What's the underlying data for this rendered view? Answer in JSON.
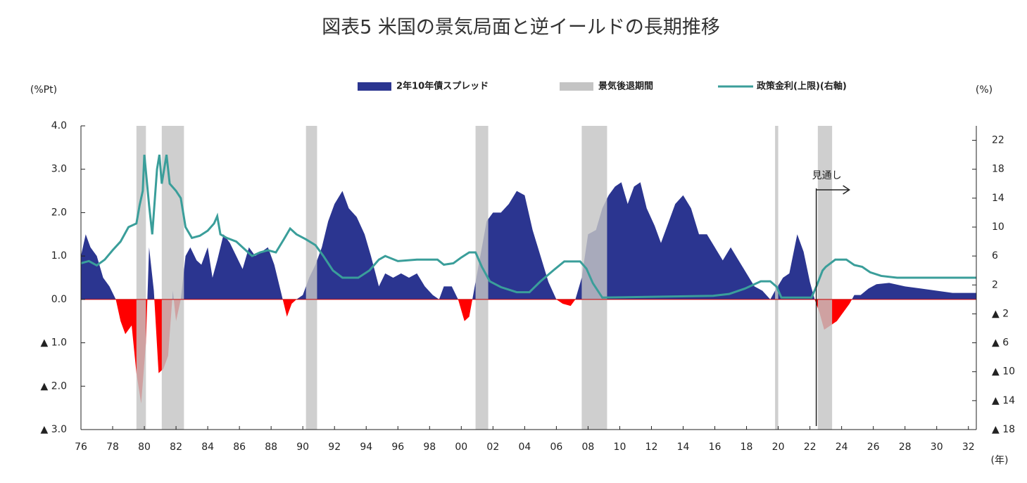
{
  "chart_data": {
    "type": "area-line",
    "title": "図表5 米国の景気局面と逆イールドの長期推移",
    "y_label": "(%Pt)",
    "y2_label": "(%)",
    "x_label": "(年)",
    "xlim": [
      1976,
      2032.5
    ],
    "xticks": [
      {
        "value": 1976,
        "label": "76"
      },
      {
        "value": 1978,
        "label": "78"
      },
      {
        "value": 1980,
        "label": "80"
      },
      {
        "value": 1982,
        "label": "82"
      },
      {
        "value": 1984,
        "label": "84"
      },
      {
        "value": 1986,
        "label": "86"
      },
      {
        "value": 1988,
        "label": "88"
      },
      {
        "value": 1990,
        "label": "90"
      },
      {
        "value": 1992,
        "label": "92"
      },
      {
        "value": 1994,
        "label": "94"
      },
      {
        "value": 1996,
        "label": "96"
      },
      {
        "value": 1998,
        "label": "98"
      },
      {
        "value": 2000,
        "label": "00"
      },
      {
        "value": 2002,
        "label": "02"
      },
      {
        "value": 2004,
        "label": "04"
      },
      {
        "value": 2006,
        "label": "06"
      },
      {
        "value": 2008,
        "label": "08"
      },
      {
        "value": 2010,
        "label": "10"
      },
      {
        "value": 2012,
        "label": "12"
      },
      {
        "value": 2014,
        "label": "14"
      },
      {
        "value": 2016,
        "label": "16"
      },
      {
        "value": 2018,
        "label": "18"
      },
      {
        "value": 2020,
        "label": "20"
      },
      {
        "value": 2022,
        "label": "22"
      },
      {
        "value": 2024,
        "label": "24"
      },
      {
        "value": 2026,
        "label": "26"
      },
      {
        "value": 2028,
        "label": "28"
      },
      {
        "value": 2030,
        "label": "30"
      },
      {
        "value": 2032,
        "label": "32"
      }
    ],
    "ylim": [
      -3,
      4
    ],
    "yticks": [
      {
        "value": 4,
        "label": "4.0"
      },
      {
        "value": 3,
        "label": "3.0"
      },
      {
        "value": 2,
        "label": "2.0"
      },
      {
        "value": 1,
        "label": "1.0"
      },
      {
        "value": 0,
        "label": "0.0"
      },
      {
        "value": -1,
        "label": "▲ 1.0"
      },
      {
        "value": -2,
        "label": "▲ 2.0"
      },
      {
        "value": -3,
        "label": "▲ 3.0"
      }
    ],
    "y2lim": [
      -18,
      24
    ],
    "y2ticks": [
      22,
      18,
      14,
      10,
      6,
      2,
      {
        "value": -2,
        "label": "▲ 2"
      },
      {
        "value": -6,
        "label": "▲ 6"
      },
      {
        "value": -10,
        "label": "▲ 10"
      },
      {
        "value": -14,
        "label": "▲ 14"
      },
      {
        "value": -18,
        "label": "▲ 18"
      }
    ],
    "series": [
      {
        "name": "2年10年債スプレッド",
        "color": "#2b3590",
        "negative_color": "#ff0000",
        "x": [
          1976.0,
          1976.3,
          1976.6,
          1977.0,
          1977.4,
          1977.8,
          1978.2,
          1978.5,
          1978.8,
          1979.2,
          1979.5,
          1979.8,
          1980.1,
          1980.3,
          1980.6,
          1980.9,
          1981.2,
          1981.5,
          1981.8,
          1982.0,
          1982.3,
          1982.6,
          1982.9,
          1983.3,
          1983.6,
          1984.0,
          1984.3,
          1984.6,
          1985.0,
          1985.4,
          1985.8,
          1986.2,
          1986.6,
          1987.0,
          1987.4,
          1987.8,
          1988.2,
          1988.6,
          1989.0,
          1989.3,
          1989.6,
          1990.0,
          1990.4,
          1990.8,
          1991.2,
          1991.6,
          1992.0,
          1992.5,
          1992.9,
          1993.4,
          1993.9,
          1994.3,
          1994.8,
          1995.2,
          1995.7,
          1996.2,
          1996.7,
          1997.2,
          1997.7,
          1998.2,
          1998.6,
          1998.9,
          1999.4,
          1999.8,
          2000.2,
          2000.5,
          2000.8,
          2001.2,
          2001.6,
          2002.0,
          2002.5,
          2003.0,
          2003.5,
          2004.0,
          2004.5,
          2005.0,
          2005.5,
          2006.0,
          2006.4,
          2006.9,
          2007.2,
          2007.6,
          2008.0,
          2008.5,
          2008.9,
          2009.3,
          2009.7,
          2010.1,
          2010.5,
          2010.9,
          2011.3,
          2011.7,
          2012.2,
          2012.6,
          2013.0,
          2013.5,
          2014.0,
          2014.5,
          2015.0,
          2015.5,
          2016.0,
          2016.5,
          2017.0,
          2017.5,
          2018.0,
          2018.5,
          2019.0,
          2019.5,
          2019.8,
          2020.3,
          2020.7,
          2021.2,
          2021.6,
          2022.0,
          2022.3,
          2022.6,
          2022.9,
          2023.3,
          2023.7,
          2024.1,
          2024.5,
          2024.8,
          2025.2,
          2025.7,
          2026.2,
          2027.0,
          2028.0,
          2029.0,
          2030.0,
          2031.0,
          2032.0,
          2032.5
        ],
        "values": [
          1.0,
          1.5,
          1.2,
          1.0,
          0.5,
          0.3,
          0.0,
          -0.5,
          -0.8,
          -0.6,
          -1.7,
          -2.4,
          -1.0,
          1.2,
          0.2,
          -1.7,
          -1.6,
          -1.3,
          0.2,
          -0.5,
          0.0,
          1.0,
          1.2,
          0.9,
          0.8,
          1.2,
          0.5,
          0.9,
          1.5,
          1.3,
          1.0,
          0.7,
          1.2,
          1.0,
          1.1,
          1.2,
          0.8,
          0.2,
          -0.4,
          -0.1,
          0.0,
          0.1,
          0.5,
          0.8,
          1.2,
          1.8,
          2.2,
          2.5,
          2.1,
          1.9,
          1.5,
          1.0,
          0.3,
          0.6,
          0.5,
          0.6,
          0.5,
          0.6,
          0.3,
          0.1,
          0.0,
          0.3,
          0.3,
          0.0,
          -0.5,
          -0.4,
          0.2,
          1.0,
          1.8,
          2.0,
          2.0,
          2.2,
          2.5,
          2.4,
          1.6,
          1.0,
          0.4,
          0.0,
          -0.1,
          -0.15,
          0.0,
          0.5,
          1.5,
          1.6,
          2.1,
          2.4,
          2.6,
          2.7,
          2.2,
          2.6,
          2.7,
          2.1,
          1.7,
          1.3,
          1.7,
          2.2,
          2.4,
          2.1,
          1.5,
          1.5,
          1.2,
          0.9,
          1.2,
          0.9,
          0.6,
          0.3,
          0.2,
          0.0,
          0.2,
          0.5,
          0.6,
          1.5,
          1.1,
          0.4,
          0.0,
          -0.3,
          -0.7,
          -0.6,
          -0.5,
          -0.3,
          -0.1,
          0.1,
          0.1,
          0.25,
          0.35,
          0.38,
          0.3,
          0.25,
          0.2,
          0.15,
          0.15,
          0.15
        ]
      },
      {
        "name": "景気後退期間",
        "color": "#c4c4c4",
        "spans": [
          [
            1979.5,
            1980.1
          ],
          [
            1981.1,
            1982.5
          ],
          [
            1990.2,
            1990.9
          ],
          [
            2000.9,
            2001.7
          ],
          [
            2007.6,
            2009.2
          ],
          [
            2019.8,
            2020.0
          ],
          [
            2022.5,
            2023.4
          ]
        ]
      },
      {
        "name": "政策金利(上限)(右軸)",
        "color": "#3a9e9a",
        "axis": "y2",
        "x": [
          1976,
          1976.5,
          1977,
          1977.5,
          1978,
          1978.5,
          1979,
          1979.5,
          1979.7,
          1979.9,
          1980.0,
          1980.3,
          1980.5,
          1980.8,
          1980.95,
          1981.1,
          1981.4,
          1981.6,
          1982.0,
          1982.3,
          1982.6,
          1983.0,
          1983.5,
          1984.0,
          1984.4,
          1984.6,
          1984.8,
          1985.2,
          1985.8,
          1986.3,
          1986.8,
          1987.3,
          1987.8,
          1988.3,
          1988.8,
          1989.2,
          1989.6,
          1990.2,
          1990.8,
          1991.3,
          1991.9,
          1992.5,
          1993.5,
          1994.2,
          1994.8,
          1995.2,
          1996.0,
          1997.2,
          1998.5,
          1998.9,
          1999.5,
          2000.0,
          2000.5,
          2000.9,
          2001.3,
          2001.8,
          2002.5,
          2003.5,
          2004.3,
          2005.0,
          2005.8,
          2006.5,
          2007.5,
          2007.9,
          2008.3,
          2008.9,
          2015.9,
          2016.9,
          2017.9,
          2018.9,
          2019.5,
          2019.9,
          2020.2,
          2022.1,
          2022.4,
          2022.8,
          2023.0,
          2023.6,
          2024.3,
          2024.8,
          2025.3,
          2025.8,
          2026.5,
          2027.5,
          2032.5
        ],
        "values": [
          5.0,
          5.3,
          4.7,
          5.5,
          6.8,
          8.0,
          10.0,
          10.5,
          13,
          15,
          20,
          13,
          9,
          18,
          20,
          16,
          20,
          16,
          15,
          14,
          10,
          8.5,
          8.8,
          9.5,
          10.5,
          11.5,
          9,
          8.5,
          8,
          7,
          6,
          6.5,
          6.8,
          6.5,
          8.3,
          9.8,
          9.0,
          8.3,
          7.5,
          6.0,
          4.0,
          3.0,
          3.0,
          4.0,
          5.5,
          6.0,
          5.3,
          5.5,
          5.5,
          4.8,
          5.0,
          5.8,
          6.5,
          6.5,
          4.5,
          2.5,
          1.7,
          1.0,
          1.0,
          2.5,
          4.0,
          5.25,
          5.25,
          4.25,
          2.25,
          0.25,
          0.5,
          0.75,
          1.5,
          2.5,
          2.5,
          1.75,
          0.25,
          0.25,
          1.75,
          4.0,
          4.5,
          5.5,
          5.5,
          4.75,
          4.5,
          3.75,
          3.25,
          3.0,
          3.0
        ]
      }
    ],
    "annotation": {
      "text": "見通し",
      "x": 2022.4
    }
  }
}
